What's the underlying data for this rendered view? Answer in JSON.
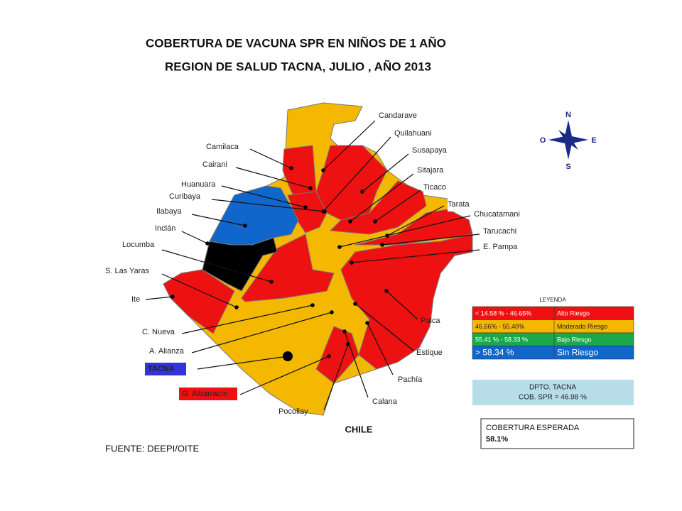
{
  "title": {
    "line1": "COBERTURA DE VACUNA  SPR EN NIÑOS DE 1 AÑO",
    "line2": "REGION DE SALUD TACNA, JULIO ,  AÑO 2013"
  },
  "districts": [
    "Candarave",
    "Quilahuani",
    "Susapaya",
    "Sitajara",
    "Ticaco",
    "Tarata",
    "Chucatamani",
    "Tarucachi",
    "E. Pampa",
    "Camilaca",
    "Cairani",
    "Huanuara",
    "Curibaya",
    "Ilabaya",
    "Inclán",
    "Locumba",
    "S. Las Yaras",
    "Ite",
    "C. Nueva",
    "A. Alianza",
    "TACNA",
    "G. Albarracín",
    "Pocollay",
    "Calana",
    "Pachía",
    "Estique",
    "Palca"
  ],
  "compass": {
    "n": "N",
    "s": "S",
    "e": "E",
    "o": "O"
  },
  "legend": {
    "title": "LEYENDA",
    "rows": [
      {
        "range": "< 14.58 % - 46.65%",
        "label": "Alto Riesgo",
        "color": "#ee1111"
      },
      {
        "range": "46.66%  - 55.40%",
        "label": "Moderado Riesgo",
        "color": "#f5b800"
      },
      {
        "range": "55.41 % - 58.33 %",
        "label": "Bajo Riesgo",
        "color": "#1aa84a"
      },
      {
        "range": "> 58.34 %",
        "label": "Sin Riesgo",
        "color": "#1166cc"
      }
    ]
  },
  "dpto": [
    "DPTO. TACNA",
    "COB. SPR = 46.98 %"
  ],
  "expected": [
    "COBERTURA  ESPERADA",
    "58.1%"
  ],
  "chile": "CHILE",
  "source": "FUENTE: DEEPI/OITE"
}
